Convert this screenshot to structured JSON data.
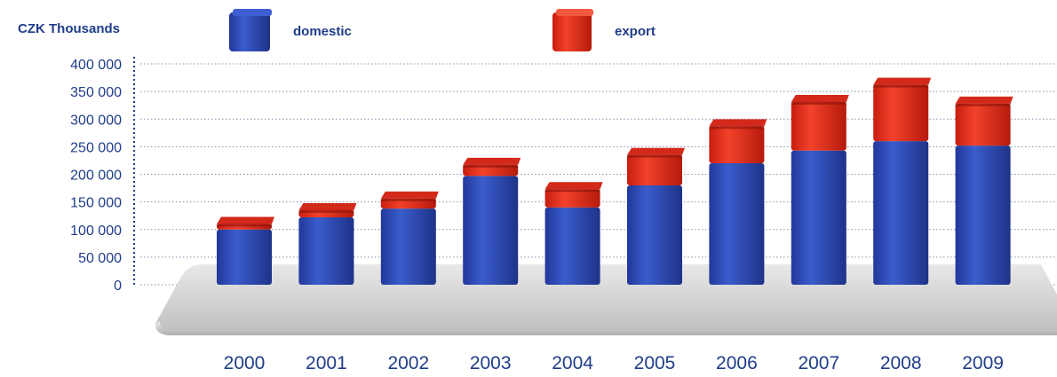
{
  "chart_data": {
    "type": "bar",
    "stacked": true,
    "ylabel": "CZK Thousands",
    "categories": [
      "2000",
      "2001",
      "2002",
      "2003",
      "2004",
      "2005",
      "2006",
      "2007",
      "2008",
      "2009"
    ],
    "series": [
      {
        "name": "domestic",
        "color": "#2d4bb0",
        "values": [
          100000,
          122000,
          138000,
          197000,
          140000,
          180000,
          220000,
          243000,
          260000,
          252000
        ]
      },
      {
        "name": "export",
        "color": "#e8311e",
        "values": [
          10000,
          13000,
          18000,
          20000,
          33000,
          55000,
          67000,
          88000,
          102000,
          76000
        ]
      }
    ],
    "ylim": [
      0,
      400000
    ],
    "yticks": [
      "0",
      "50 000",
      "100 000",
      "150 000",
      "200 000",
      "250 000",
      "300 000",
      "350 000",
      "400 000"
    ],
    "ytick_values": [
      0,
      50000,
      100000,
      150000,
      200000,
      250000,
      300000,
      350000,
      400000
    ],
    "grid": true,
    "legend_position": "top"
  }
}
